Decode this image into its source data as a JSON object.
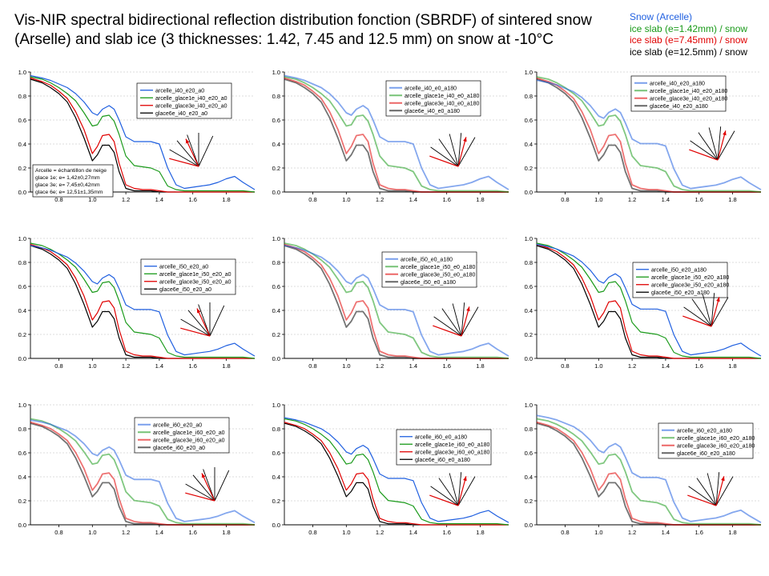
{
  "title": "Vis-NIR spectral bidirectional reflection distribution fonction (SBRDF) of sintered snow (Arselle) and slab ice (3 thicknesses: 1.42, 7.45 and 12.5 mm) on snow at -10°C",
  "legend": [
    {
      "label": "Snow (Arcelle)",
      "color": "#1f5fe0"
    },
    {
      "label": "ice slab (e=1.42mm) / snow",
      "color": "#1a9a1a"
    },
    {
      "label": "ice slab (e=7.45mm) / snow",
      "color": "#e00000"
    },
    {
      "label": "ice slab (e=12.5mm) / snow",
      "color": "#000000"
    }
  ],
  "chart_data": [
    {
      "type": "line",
      "xlim": [
        0.63,
        1.97
      ],
      "ylim": [
        0,
        1.0
      ],
      "x_ticks": [
        0.8,
        1.0,
        1.2,
        1.4,
        1.6,
        1.8
      ],
      "y_ticks": [
        0.0,
        0.2,
        0.4,
        0.6,
        0.8,
        1.0
      ],
      "series": [
        {
          "name": "arcelle_i40_e20_a0"
        },
        {
          "name": "arcelle_glace1e_i40_e20_a0"
        },
        {
          "name": "arcelle_glace3e_i40_e20_a0"
        },
        {
          "name": "glace6e_i40_e20_a0"
        }
      ],
      "note_lines": [
        "Arcelle = échantillon de neige",
        "glace 1e;  e= 1,42±0,27mm",
        "glace 3e;  e= 7,45±0,42mm",
        "glace 6e;  e= 12,51±1,35mm"
      ]
    },
    {
      "type": "line",
      "xlim": [
        0.63,
        1.97
      ],
      "ylim": [
        0,
        1.0
      ],
      "x_ticks": [
        0.8,
        1.0,
        1.2,
        1.4,
        1.6,
        1.8
      ],
      "y_ticks": [
        0.0,
        0.2,
        0.4,
        0.6,
        0.8,
        1.0
      ],
      "series": [
        {
          "name": "arcelle_i40_e0_a180"
        },
        {
          "name": "arcelle_glace1e_i40_e0_a180"
        },
        {
          "name": "arcelle_glace3e_i40_e0_a180"
        },
        {
          "name": "glace6e_i40_e0_a180"
        }
      ]
    },
    {
      "type": "line",
      "xlim": [
        0.63,
        1.97
      ],
      "ylim": [
        0,
        1.0
      ],
      "x_ticks": [
        0.8,
        1.0,
        1.2,
        1.4,
        1.6,
        1.8
      ],
      "y_ticks": [
        0.0,
        0.2,
        0.4,
        0.6,
        0.8,
        1.0
      ],
      "series": [
        {
          "name": "arcelle_i40_e20_a180"
        },
        {
          "name": "arcelle_glace1e_i40_e20_a180"
        },
        {
          "name": "arcelle_glace3e_i40_e20_a180"
        },
        {
          "name": "glace6e_i40_e20_a180"
        }
      ]
    },
    {
      "type": "line",
      "xlim": [
        0.63,
        1.97
      ],
      "ylim": [
        0,
        1.0
      ],
      "x_ticks": [
        0.8,
        1.0,
        1.2,
        1.4,
        1.6,
        1.8
      ],
      "y_ticks": [
        0.0,
        0.2,
        0.4,
        0.6,
        0.8,
        1.0
      ],
      "series": [
        {
          "name": "arcelle_i50_e20_a0"
        },
        {
          "name": "arcelle_glace1e_i50_e20_a0"
        },
        {
          "name": "arcelle_glace3e_i50_e20_a0"
        },
        {
          "name": "glace6e_i50_e20_a0"
        }
      ]
    },
    {
      "type": "line",
      "xlim": [
        0.63,
        1.97
      ],
      "ylim": [
        0,
        1.0
      ],
      "x_ticks": [
        0.8,
        1.0,
        1.2,
        1.4,
        1.6,
        1.8
      ],
      "y_ticks": [
        0.0,
        0.2,
        0.4,
        0.6,
        0.8,
        1.0
      ],
      "series": [
        {
          "name": "arcelle_i50_e0_a180"
        },
        {
          "name": "arcelle_glace1e_i50_e0_a180"
        },
        {
          "name": "arcelle_glace3e_i50_e0_a180"
        },
        {
          "name": "glace6e_i50_e0_a180"
        }
      ]
    },
    {
      "type": "line",
      "xlim": [
        0.63,
        1.97
      ],
      "ylim": [
        0,
        1.0
      ],
      "x_ticks": [
        0.8,
        1.0,
        1.2,
        1.4,
        1.6,
        1.8
      ],
      "y_ticks": [
        0.0,
        0.2,
        0.4,
        0.6,
        0.8,
        1.0
      ],
      "series": [
        {
          "name": "arcelle_i50_e20_a180"
        },
        {
          "name": "arcelle_glace1e_i50_e20_a180"
        },
        {
          "name": "arcelle_glace3e_i50_e20_a180"
        },
        {
          "name": "glace6e_i50_e20_a180"
        }
      ]
    },
    {
      "type": "line",
      "xlim": [
        0.63,
        1.97
      ],
      "ylim": [
        0,
        1.0
      ],
      "x_ticks": [
        0.8,
        1.0,
        1.2,
        1.4,
        1.6,
        1.8
      ],
      "y_ticks": [
        0.0,
        0.2,
        0.4,
        0.6,
        0.8,
        1.0
      ],
      "series": [
        {
          "name": "arcelle_i60_e20_a0"
        },
        {
          "name": "arcelle_glace1e_i60_e20_a0"
        },
        {
          "name": "arcelle_glace3e_i60_e20_a0"
        },
        {
          "name": "glace6e_i60_e20_a0"
        }
      ]
    },
    {
      "type": "line",
      "xlim": [
        0.63,
        1.97
      ],
      "ylim": [
        0,
        1.0
      ],
      "x_ticks": [
        0.8,
        1.0,
        1.2,
        1.4,
        1.6,
        1.8
      ],
      "y_ticks": [
        0.0,
        0.2,
        0.4,
        0.6,
        0.8,
        1.0
      ],
      "series": [
        {
          "name": "arcelle_i60_e0_a180"
        },
        {
          "name": "arcelle_glace1e_i60_e0_a180"
        },
        {
          "name": "arcelle_glace3e_i60_e0_a180"
        },
        {
          "name": "glace6e_i60_e0_a180"
        }
      ]
    },
    {
      "type": "line",
      "xlim": [
        0.63,
        1.97
      ],
      "ylim": [
        0,
        1.0
      ],
      "x_ticks": [
        0.8,
        1.0,
        1.2,
        1.4,
        1.6,
        1.8
      ],
      "y_ticks": [
        0.0,
        0.2,
        0.4,
        0.6,
        0.8,
        1.0
      ],
      "series": [
        {
          "name": "arcelle_i60_e20_a180"
        },
        {
          "name": "arcelle_glace1e_i60_e20_a180"
        },
        {
          "name": "arcelle_glace3e_i60_e20_a180"
        },
        {
          "name": "glace6e_i60_e20_a180"
        }
      ]
    }
  ],
  "spectra": {
    "x": [
      0.63,
      0.7,
      0.75,
      0.8,
      0.85,
      0.9,
      0.95,
      1.0,
      1.03,
      1.06,
      1.1,
      1.13,
      1.16,
      1.2,
      1.25,
      1.3,
      1.35,
      1.4,
      1.45,
      1.5,
      1.55,
      1.6,
      1.65,
      1.7,
      1.75,
      1.8,
      1.85,
      1.9,
      1.97
    ],
    "snow": [
      0.97,
      0.95,
      0.93,
      0.9,
      0.87,
      0.82,
      0.75,
      0.66,
      0.64,
      0.69,
      0.72,
      0.69,
      0.6,
      0.46,
      0.42,
      0.42,
      0.42,
      0.4,
      0.2,
      0.06,
      0.03,
      0.04,
      0.05,
      0.06,
      0.08,
      0.11,
      0.13,
      0.08,
      0.02
    ],
    "ice1": [
      0.96,
      0.94,
      0.91,
      0.87,
      0.82,
      0.76,
      0.66,
      0.55,
      0.56,
      0.63,
      0.64,
      0.59,
      0.48,
      0.3,
      0.22,
      0.21,
      0.2,
      0.17,
      0.05,
      0.02,
      0.01,
      0.01,
      0.01,
      0.01,
      0.01,
      0.01,
      0.01,
      0.01,
      0.0
    ],
    "ice3": [
      0.95,
      0.92,
      0.89,
      0.84,
      0.78,
      0.67,
      0.52,
      0.32,
      0.38,
      0.47,
      0.48,
      0.42,
      0.24,
      0.06,
      0.03,
      0.02,
      0.02,
      0.01,
      0.0,
      0.0,
      0.0,
      0.0,
      0.0,
      0.0,
      0.0,
      0.0,
      0.0,
      0.0,
      0.0
    ],
    "ice6": [
      0.94,
      0.91,
      0.87,
      0.82,
      0.75,
      0.62,
      0.45,
      0.26,
      0.31,
      0.39,
      0.39,
      0.33,
      0.17,
      0.03,
      0.01,
      0.01,
      0.01,
      0.0,
      0.0,
      0.0,
      0.0,
      0.0,
      0.0,
      0.0,
      0.0,
      0.0,
      0.0,
      0.0,
      0.0
    ]
  }
}
